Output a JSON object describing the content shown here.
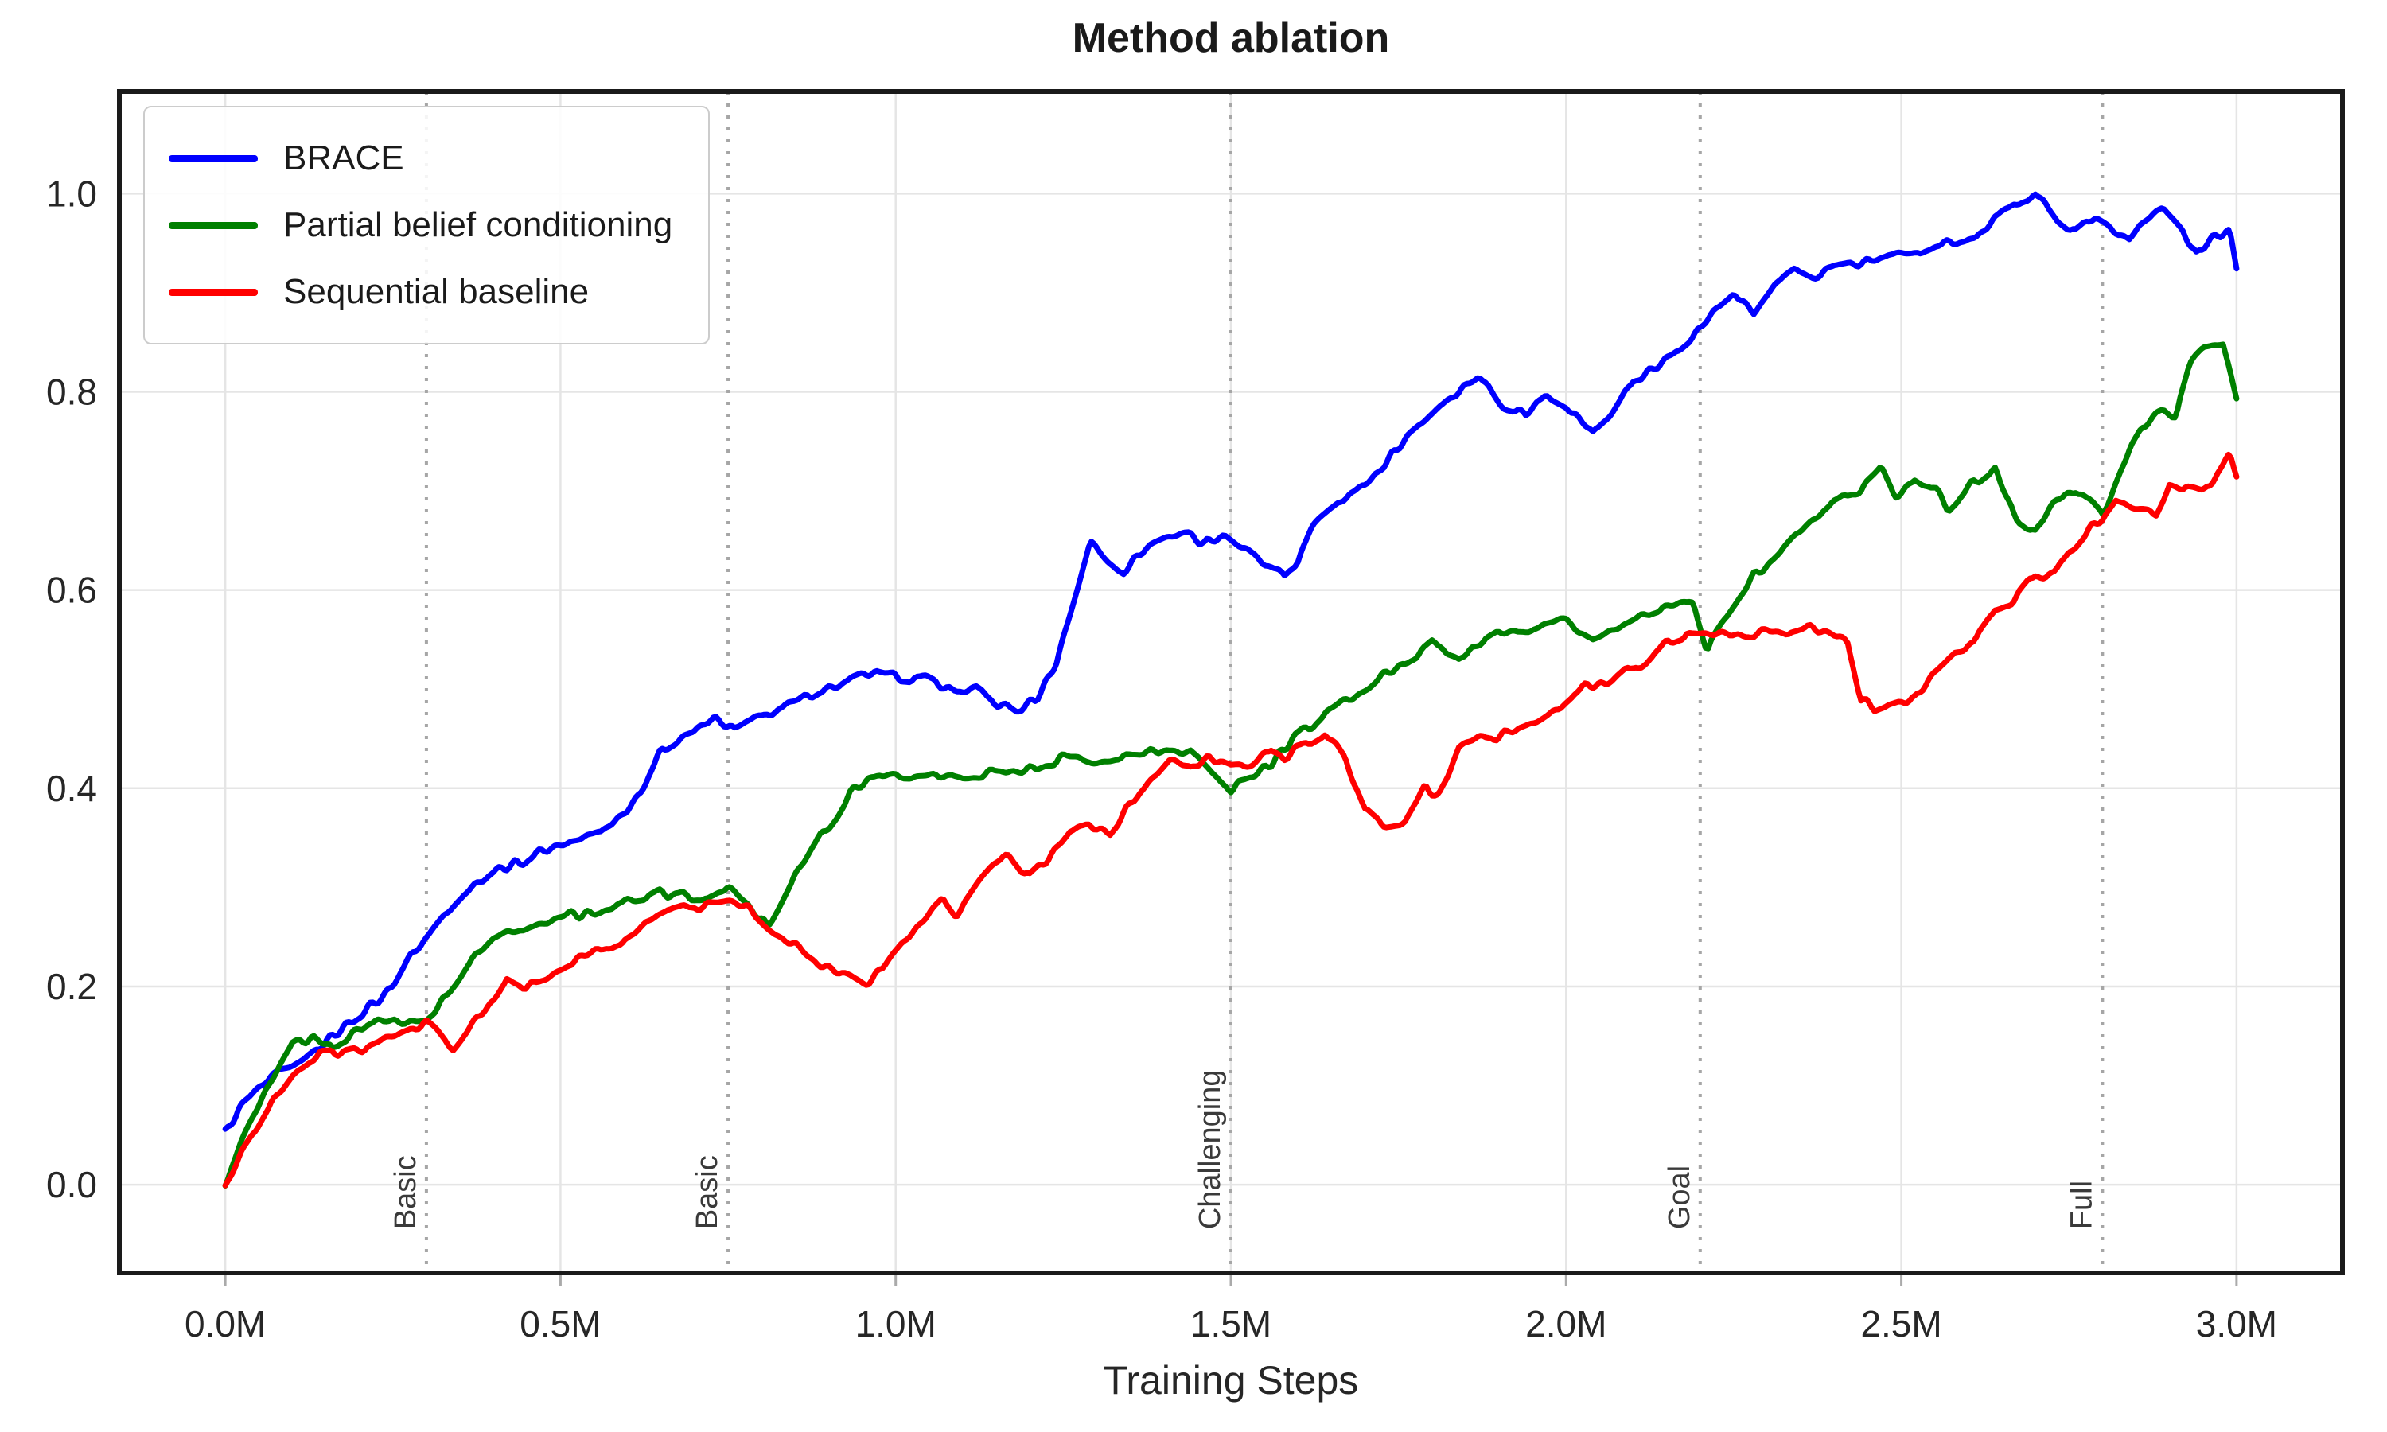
{
  "chart_data": {
    "type": "line",
    "title": "Method ablation",
    "xlabel": "Training Steps",
    "ylabel": "",
    "grid": true,
    "legend_position": "upper left",
    "xlim": [
      -0.158,
      3.158
    ],
    "ylim": [
      -0.089,
      1.103
    ],
    "x_ticks": [
      {
        "value": 0.0,
        "label": "0.0M"
      },
      {
        "value": 0.5,
        "label": "0.5M"
      },
      {
        "value": 1.0,
        "label": "1.0M"
      },
      {
        "value": 1.5,
        "label": "1.5M"
      },
      {
        "value": 2.0,
        "label": "2.0M"
      },
      {
        "value": 2.5,
        "label": "2.5M"
      },
      {
        "value": 3.0,
        "label": "3.0M"
      }
    ],
    "y_ticks": [
      {
        "value": 0.0,
        "label": "0.0"
      },
      {
        "value": 0.2,
        "label": "0.2"
      },
      {
        "value": 0.4,
        "label": "0.4"
      },
      {
        "value": 0.6,
        "label": "0.6"
      },
      {
        "value": 0.8,
        "label": "0.8"
      },
      {
        "value": 1.0,
        "label": "1.0"
      }
    ],
    "stage_markers": [
      {
        "label": "Basic",
        "x": 0.3
      },
      {
        "label": "Basic",
        "x": 0.75
      },
      {
        "label": "Challenging",
        "x": 1.5
      },
      {
        "label": "Goal",
        "x": 2.2
      },
      {
        "label": "Full",
        "x": 2.8
      }
    ],
    "colors": {
      "grid": "#e5e5e5",
      "spine": "#1a1a1a",
      "marker_line": "#a6a6a6",
      "tick_text": "#262626",
      "stage_text": "#3a3a3a"
    },
    "noise": {
      "amplitude": 0.008,
      "step": 0.004
    },
    "series": [
      {
        "name": "BRACE",
        "color": "#0000ff",
        "points": [
          [
            0.0,
            0.055
          ],
          [
            0.02,
            0.075
          ],
          [
            0.05,
            0.095
          ],
          [
            0.08,
            0.112
          ],
          [
            0.11,
            0.12
          ],
          [
            0.14,
            0.135
          ],
          [
            0.17,
            0.152
          ],
          [
            0.2,
            0.17
          ],
          [
            0.23,
            0.188
          ],
          [
            0.26,
            0.212
          ],
          [
            0.29,
            0.24
          ],
          [
            0.32,
            0.266
          ],
          [
            0.35,
            0.29
          ],
          [
            0.38,
            0.31
          ],
          [
            0.41,
            0.32
          ],
          [
            0.44,
            0.326
          ],
          [
            0.47,
            0.336
          ],
          [
            0.5,
            0.345
          ],
          [
            0.53,
            0.35
          ],
          [
            0.56,
            0.357
          ],
          [
            0.59,
            0.372
          ],
          [
            0.62,
            0.4
          ],
          [
            0.65,
            0.435
          ],
          [
            0.68,
            0.45
          ],
          [
            0.71,
            0.462
          ],
          [
            0.73,
            0.472
          ],
          [
            0.76,
            0.458
          ],
          [
            0.79,
            0.466
          ],
          [
            0.82,
            0.478
          ],
          [
            0.85,
            0.488
          ],
          [
            0.88,
            0.496
          ],
          [
            0.91,
            0.504
          ],
          [
            0.94,
            0.51
          ],
          [
            0.97,
            0.516
          ],
          [
            1.0,
            0.515
          ],
          [
            1.03,
            0.512
          ],
          [
            1.06,
            0.506
          ],
          [
            1.09,
            0.5
          ],
          [
            1.12,
            0.503
          ],
          [
            1.15,
            0.482
          ],
          [
            1.18,
            0.478
          ],
          [
            1.21,
            0.492
          ],
          [
            1.24,
            0.53
          ],
          [
            1.27,
            0.6
          ],
          [
            1.29,
            0.648
          ],
          [
            1.31,
            0.632
          ],
          [
            1.34,
            0.62
          ],
          [
            1.37,
            0.642
          ],
          [
            1.4,
            0.65
          ],
          [
            1.43,
            0.657
          ],
          [
            1.46,
            0.645
          ],
          [
            1.49,
            0.656
          ],
          [
            1.52,
            0.64
          ],
          [
            1.55,
            0.626
          ],
          [
            1.58,
            0.615
          ],
          [
            1.6,
            0.63
          ],
          [
            1.63,
            0.672
          ],
          [
            1.66,
            0.69
          ],
          [
            1.69,
            0.702
          ],
          [
            1.72,
            0.722
          ],
          [
            1.75,
            0.746
          ],
          [
            1.78,
            0.766
          ],
          [
            1.81,
            0.786
          ],
          [
            1.84,
            0.8
          ],
          [
            1.87,
            0.814
          ],
          [
            1.9,
            0.792
          ],
          [
            1.94,
            0.776
          ],
          [
            1.97,
            0.8
          ],
          [
            2.0,
            0.788
          ],
          [
            2.04,
            0.756
          ],
          [
            2.07,
            0.78
          ],
          [
            2.1,
            0.81
          ],
          [
            2.13,
            0.822
          ],
          [
            2.16,
            0.838
          ],
          [
            2.2,
            0.862
          ],
          [
            2.23,
            0.886
          ],
          [
            2.25,
            0.9
          ],
          [
            2.28,
            0.88
          ],
          [
            2.31,
            0.908
          ],
          [
            2.34,
            0.92
          ],
          [
            2.37,
            0.916
          ],
          [
            2.4,
            0.928
          ],
          [
            2.43,
            0.93
          ],
          [
            2.46,
            0.936
          ],
          [
            2.49,
            0.938
          ],
          [
            2.52,
            0.94
          ],
          [
            2.55,
            0.946
          ],
          [
            2.58,
            0.95
          ],
          [
            2.61,
            0.956
          ],
          [
            2.64,
            0.976
          ],
          [
            2.67,
            0.99
          ],
          [
            2.7,
            0.998
          ],
          [
            2.73,
            0.976
          ],
          [
            2.76,
            0.964
          ],
          [
            2.79,
            0.976
          ],
          [
            2.82,
            0.966
          ],
          [
            2.84,
            0.956
          ],
          [
            2.87,
            0.976
          ],
          [
            2.89,
            0.988
          ],
          [
            2.92,
            0.962
          ],
          [
            2.94,
            0.936
          ],
          [
            2.97,
            0.956
          ],
          [
            2.99,
            0.958
          ],
          [
            3.0,
            0.92
          ]
        ]
      },
      {
        "name": "Partial belief conditioning",
        "color": "#008000",
        "points": [
          [
            0.0,
            0.005
          ],
          [
            0.03,
            0.05
          ],
          [
            0.06,
            0.092
          ],
          [
            0.1,
            0.14
          ],
          [
            0.13,
            0.147
          ],
          [
            0.16,
            0.136
          ],
          [
            0.2,
            0.158
          ],
          [
            0.24,
            0.166
          ],
          [
            0.27,
            0.162
          ],
          [
            0.3,
            0.168
          ],
          [
            0.33,
            0.192
          ],
          [
            0.36,
            0.22
          ],
          [
            0.4,
            0.246
          ],
          [
            0.44,
            0.262
          ],
          [
            0.48,
            0.266
          ],
          [
            0.52,
            0.272
          ],
          [
            0.56,
            0.277
          ],
          [
            0.6,
            0.286
          ],
          [
            0.64,
            0.292
          ],
          [
            0.68,
            0.296
          ],
          [
            0.72,
            0.288
          ],
          [
            0.75,
            0.302
          ],
          [
            0.78,
            0.286
          ],
          [
            0.81,
            0.262
          ],
          [
            0.84,
            0.3
          ],
          [
            0.87,
            0.332
          ],
          [
            0.9,
            0.362
          ],
          [
            0.93,
            0.396
          ],
          [
            0.96,
            0.406
          ],
          [
            1.0,
            0.416
          ],
          [
            1.05,
            0.412
          ],
          [
            1.1,
            0.41
          ],
          [
            1.15,
            0.418
          ],
          [
            1.2,
            0.42
          ],
          [
            1.25,
            0.43
          ],
          [
            1.3,
            0.43
          ],
          [
            1.35,
            0.433
          ],
          [
            1.4,
            0.436
          ],
          [
            1.44,
            0.44
          ],
          [
            1.47,
            0.42
          ],
          [
            1.5,
            0.4
          ],
          [
            1.54,
            0.416
          ],
          [
            1.58,
            0.44
          ],
          [
            1.62,
            0.462
          ],
          [
            1.66,
            0.482
          ],
          [
            1.7,
            0.5
          ],
          [
            1.75,
            0.52
          ],
          [
            1.8,
            0.546
          ],
          [
            1.84,
            0.532
          ],
          [
            1.88,
            0.55
          ],
          [
            1.92,
            0.56
          ],
          [
            1.96,
            0.566
          ],
          [
            2.0,
            0.572
          ],
          [
            2.04,
            0.55
          ],
          [
            2.08,
            0.562
          ],
          [
            2.12,
            0.576
          ],
          [
            2.16,
            0.582
          ],
          [
            2.19,
            0.586
          ],
          [
            2.21,
            0.54
          ],
          [
            2.24,
            0.572
          ],
          [
            2.28,
            0.616
          ],
          [
            2.32,
            0.64
          ],
          [
            2.36,
            0.666
          ],
          [
            2.4,
            0.686
          ],
          [
            2.44,
            0.7
          ],
          [
            2.47,
            0.72
          ],
          [
            2.49,
            0.692
          ],
          [
            2.52,
            0.712
          ],
          [
            2.55,
            0.702
          ],
          [
            2.57,
            0.682
          ],
          [
            2.61,
            0.71
          ],
          [
            2.64,
            0.72
          ],
          [
            2.67,
            0.676
          ],
          [
            2.7,
            0.662
          ],
          [
            2.73,
            0.692
          ],
          [
            2.76,
            0.702
          ],
          [
            2.8,
            0.676
          ],
          [
            2.83,
            0.73
          ],
          [
            2.87,
            0.772
          ],
          [
            2.89,
            0.782
          ],
          [
            2.91,
            0.772
          ],
          [
            2.93,
            0.825
          ],
          [
            2.95,
            0.84
          ],
          [
            2.98,
            0.845
          ],
          [
            3.0,
            0.795
          ]
        ]
      },
      {
        "name": "Sequential baseline",
        "color": "#ff0000",
        "points": [
          [
            0.0,
            0.0
          ],
          [
            0.03,
            0.04
          ],
          [
            0.06,
            0.075
          ],
          [
            0.1,
            0.112
          ],
          [
            0.14,
            0.13
          ],
          [
            0.18,
            0.136
          ],
          [
            0.22,
            0.142
          ],
          [
            0.25,
            0.147
          ],
          [
            0.28,
            0.156
          ],
          [
            0.3,
            0.162
          ],
          [
            0.32,
            0.152
          ],
          [
            0.34,
            0.14
          ],
          [
            0.37,
            0.162
          ],
          [
            0.4,
            0.186
          ],
          [
            0.42,
            0.21
          ],
          [
            0.45,
            0.196
          ],
          [
            0.48,
            0.21
          ],
          [
            0.51,
            0.222
          ],
          [
            0.54,
            0.232
          ],
          [
            0.57,
            0.24
          ],
          [
            0.6,
            0.247
          ],
          [
            0.63,
            0.266
          ],
          [
            0.66,
            0.276
          ],
          [
            0.69,
            0.276
          ],
          [
            0.72,
            0.282
          ],
          [
            0.75,
            0.287
          ],
          [
            0.78,
            0.28
          ],
          [
            0.81,
            0.262
          ],
          [
            0.84,
            0.246
          ],
          [
            0.87,
            0.232
          ],
          [
            0.9,
            0.222
          ],
          [
            0.93,
            0.212
          ],
          [
            0.95,
            0.2
          ],
          [
            0.98,
            0.216
          ],
          [
            1.01,
            0.246
          ],
          [
            1.04,
            0.266
          ],
          [
            1.07,
            0.29
          ],
          [
            1.09,
            0.272
          ],
          [
            1.12,
            0.3
          ],
          [
            1.15,
            0.326
          ],
          [
            1.17,
            0.332
          ],
          [
            1.2,
            0.312
          ],
          [
            1.23,
            0.33
          ],
          [
            1.26,
            0.356
          ],
          [
            1.29,
            0.362
          ],
          [
            1.32,
            0.352
          ],
          [
            1.35,
            0.382
          ],
          [
            1.38,
            0.402
          ],
          [
            1.41,
            0.426
          ],
          [
            1.44,
            0.42
          ],
          [
            1.47,
            0.432
          ],
          [
            1.5,
            0.422
          ],
          [
            1.53,
            0.426
          ],
          [
            1.56,
            0.442
          ],
          [
            1.58,
            0.432
          ],
          [
            1.61,
            0.446
          ],
          [
            1.64,
            0.456
          ],
          [
            1.67,
            0.432
          ],
          [
            1.7,
            0.376
          ],
          [
            1.73,
            0.36
          ],
          [
            1.76,
            0.366
          ],
          [
            1.79,
            0.4
          ],
          [
            1.81,
            0.392
          ],
          [
            1.84,
            0.44
          ],
          [
            1.87,
            0.446
          ],
          [
            1.9,
            0.452
          ],
          [
            1.93,
            0.46
          ],
          [
            1.96,
            0.47
          ],
          [
            2.0,
            0.486
          ],
          [
            2.03,
            0.5
          ],
          [
            2.06,
            0.502
          ],
          [
            2.09,
            0.52
          ],
          [
            2.12,
            0.53
          ],
          [
            2.15,
            0.55
          ],
          [
            2.18,
            0.556
          ],
          [
            2.21,
            0.55
          ],
          [
            2.24,
            0.556
          ],
          [
            2.27,
            0.55
          ],
          [
            2.3,
            0.56
          ],
          [
            2.33,
            0.556
          ],
          [
            2.36,
            0.56
          ],
          [
            2.39,
            0.556
          ],
          [
            2.42,
            0.546
          ],
          [
            2.44,
            0.49
          ],
          [
            2.46,
            0.48
          ],
          [
            2.49,
            0.486
          ],
          [
            2.52,
            0.492
          ],
          [
            2.55,
            0.52
          ],
          [
            2.58,
            0.54
          ],
          [
            2.61,
            0.546
          ],
          [
            2.64,
            0.58
          ],
          [
            2.67,
            0.59
          ],
          [
            2.7,
            0.616
          ],
          [
            2.73,
            0.62
          ],
          [
            2.76,
            0.646
          ],
          [
            2.78,
            0.66
          ],
          [
            2.8,
            0.672
          ],
          [
            2.82,
            0.69
          ],
          [
            2.85,
            0.68
          ],
          [
            2.88,
            0.68
          ],
          [
            2.9,
            0.71
          ],
          [
            2.92,
            0.7
          ],
          [
            2.95,
            0.7
          ],
          [
            2.97,
            0.72
          ],
          [
            2.99,
            0.736
          ],
          [
            3.0,
            0.715
          ]
        ]
      }
    ]
  }
}
